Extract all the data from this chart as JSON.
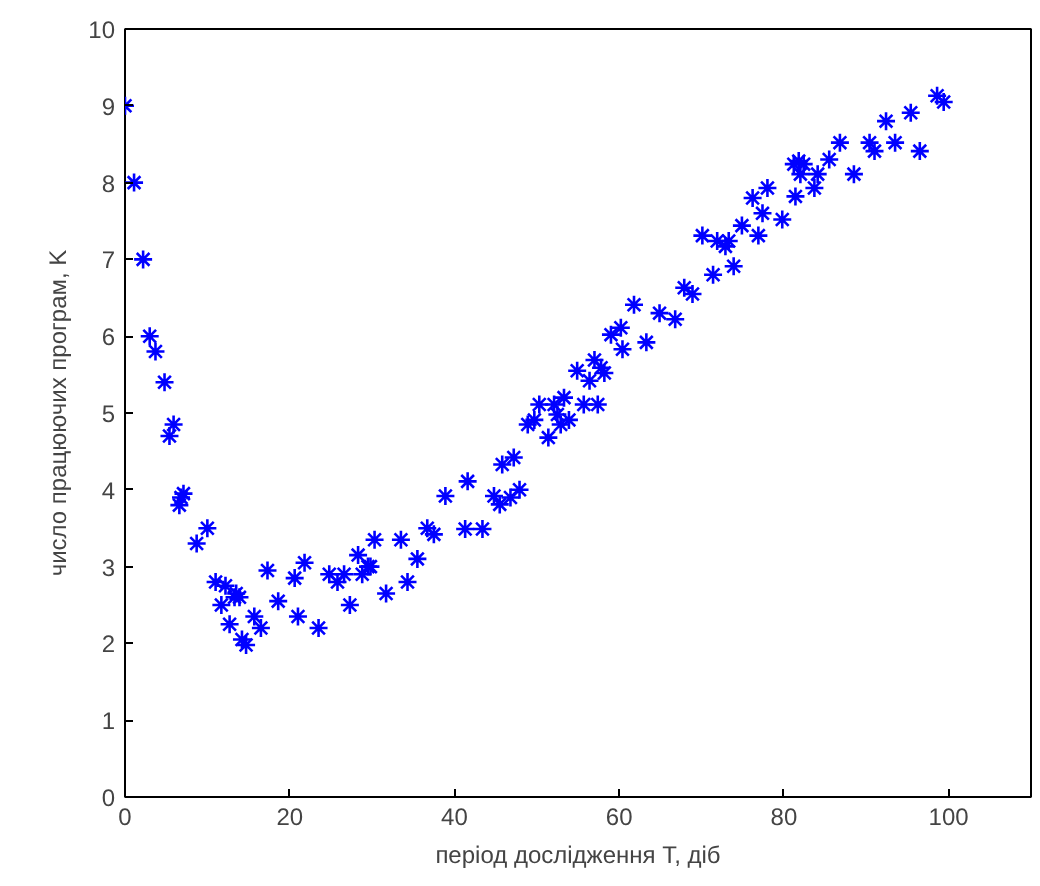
{
  "chart_data": {
    "type": "scatter",
    "xlabel": "період дослідження Т, діб",
    "ylabel": "число працюючих програм, K",
    "xlim": [
      0,
      110
    ],
    "ylim": [
      0,
      10
    ],
    "xticks": [
      0,
      20,
      40,
      60,
      80,
      100
    ],
    "yticks": [
      0,
      1,
      2,
      3,
      4,
      5,
      6,
      7,
      8,
      9,
      10
    ],
    "grid": false,
    "marker": "cross",
    "series": [
      {
        "color": "#0000ff",
        "x": [
          0,
          1.1,
          2.2,
          3.0,
          3.7,
          4.8,
          5.4,
          5.9,
          6.6,
          7.1,
          6.8,
          8.7,
          10.0,
          11.0,
          11.7,
          12.2,
          12.7,
          13.3,
          13.5,
          13.9,
          14.2,
          14.7,
          15.7,
          16.5,
          17.3,
          18.6,
          20.6,
          21.0,
          21.8,
          23.5,
          24.8,
          25.8,
          26.6,
          27.3,
          28.3,
          28.8,
          29.5,
          29.8,
          30.3,
          31.7,
          33.5,
          34.3,
          35.5,
          36.7,
          37.5,
          38.9,
          41.3,
          43.4,
          41.6,
          44.8,
          45.5,
          46.8,
          47.9,
          45.8,
          47.2,
          48.9,
          49.7,
          50.3,
          51.4,
          52.1,
          52.5,
          52.9,
          53.3,
          53.9,
          54.9,
          55.7,
          56.4,
          57.4,
          57.0,
          57.8,
          58.2,
          59.0,
          60.2,
          60.4,
          63.3,
          61.8,
          64.9,
          66.8,
          67.9,
          68.9,
          71.4,
          70.1,
          71.9,
          72.9,
          73.3,
          73.9,
          74.9,
          76.9,
          76.2,
          77.4,
          78.0,
          79.8,
          81.2,
          81.8,
          82.4,
          82.0,
          81.4,
          83.7,
          84.1,
          85.5,
          86.8,
          88.5,
          90.4,
          91.0,
          92.4,
          93.5,
          95.4,
          96.5,
          98.6,
          99.4
        ],
        "values": [
          9.0,
          8.0,
          7.0,
          6.0,
          5.8,
          5.4,
          4.7,
          4.85,
          3.8,
          3.95,
          3.9,
          3.3,
          3.5,
          2.8,
          2.5,
          2.75,
          2.25,
          2.6,
          2.65,
          2.6,
          2.05,
          1.98,
          2.35,
          2.2,
          2.95,
          2.55,
          2.85,
          2.35,
          3.05,
          2.2,
          2.9,
          2.8,
          2.9,
          2.5,
          3.15,
          2.9,
          3.0,
          3.0,
          3.35,
          2.65,
          3.35,
          2.8,
          3.1,
          3.5,
          3.42,
          3.92,
          3.49,
          3.49,
          4.11,
          3.92,
          3.81,
          3.9,
          4.0,
          4.33,
          4.42,
          4.85,
          4.91,
          5.11,
          4.68,
          5.11,
          4.98,
          4.85,
          5.2,
          4.91,
          5.55,
          5.11,
          5.42,
          5.11,
          5.69,
          5.59,
          5.52,
          6.02,
          6.11,
          5.83,
          5.92,
          6.41,
          6.3,
          6.22,
          6.63,
          6.55,
          6.8,
          7.31,
          7.24,
          7.17,
          7.24,
          6.91,
          7.44,
          7.31,
          7.8,
          7.6,
          7.93,
          7.52,
          8.24,
          8.28,
          8.24,
          8.11,
          7.82,
          7.93,
          8.11,
          8.3,
          8.52,
          8.11,
          8.52,
          8.41,
          8.8,
          8.52,
          8.91,
          8.41,
          9.13,
          9.05
        ]
      }
    ]
  }
}
